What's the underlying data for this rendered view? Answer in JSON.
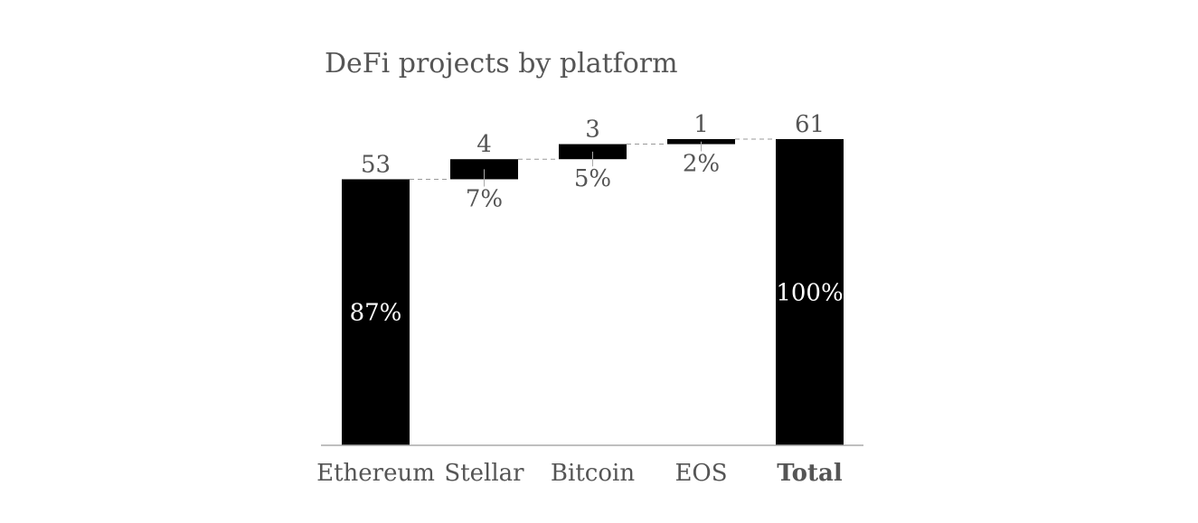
{
  "chart_data": {
    "type": "bar",
    "subtype": "waterfall",
    "title": "DeFi projects by platform",
    "categories": [
      "Ethereum",
      "Stellar",
      "Bitcoin",
      "EOS",
      "Total"
    ],
    "values": [
      53,
      4,
      3,
      1,
      61
    ],
    "percent_labels": [
      "87%",
      "7%",
      "5%",
      "2%",
      "100%"
    ],
    "total_category": "Total",
    "ylim": [
      0,
      61
    ],
    "grid": false,
    "legend": "none",
    "colors": {
      "bar": "#000000",
      "text": "#555555",
      "inside_text": "#ffffff",
      "connector": "#999999",
      "axis": "#aaaaaa"
    }
  }
}
